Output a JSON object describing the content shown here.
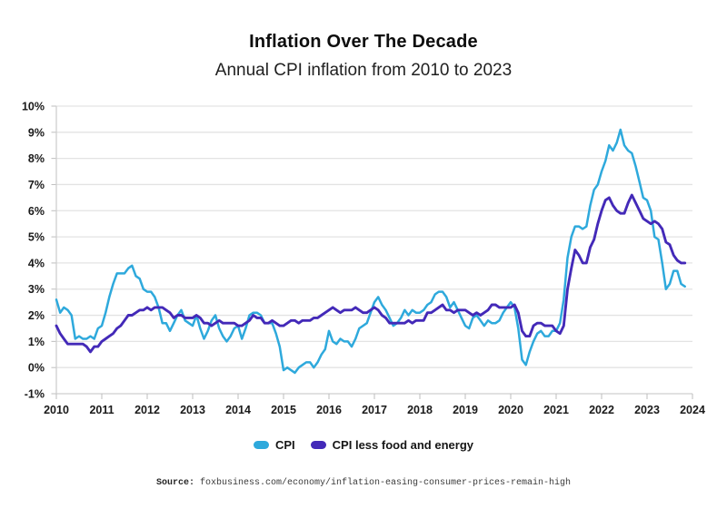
{
  "header": {
    "title": "Inflation Over The Decade",
    "subtitle": "Annual CPI inflation from 2010 to 2023"
  },
  "legend": [
    {
      "label": "CPI",
      "color": "#2ea9dc"
    },
    {
      "label": "CPI less food and energy",
      "color": "#4329b8"
    }
  ],
  "source": {
    "prefix": "Source:",
    "text": "foxbusiness.com/economy/inflation-easing-consumer-prices-remain-high"
  },
  "chart_data": {
    "type": "line",
    "title": "Inflation Over The Decade",
    "subtitle": "Annual CPI inflation from 2010 to 2023",
    "xlabel": "",
    "ylabel": "",
    "xlim": [
      2010,
      2024
    ],
    "ylim": [
      -1,
      10
    ],
    "grid": "horizontal",
    "legend_position": "bottom",
    "x_start_year": 2010,
    "frequency": "monthly",
    "x_tick_labels": [
      "2010",
      "2011",
      "2012",
      "2013",
      "2014",
      "2015",
      "2016",
      "2017",
      "2018",
      "2019",
      "2020",
      "2021",
      "2022",
      "2023",
      "2024"
    ],
    "y_tick_values": [
      10,
      9,
      8,
      7,
      6,
      5,
      4,
      3,
      2,
      1,
      0,
      -1
    ],
    "y_tick_labels": [
      "10%",
      "9%",
      "8%",
      "7%",
      "6%",
      "5%",
      "4%",
      "3%",
      "2%",
      "1%",
      "0%",
      "-1%"
    ],
    "series": [
      {
        "name": "CPI",
        "color": "#2ea9dc",
        "values": [
          2.6,
          2.1,
          2.3,
          2.2,
          2.0,
          1.1,
          1.2,
          1.1,
          1.1,
          1.2,
          1.1,
          1.5,
          1.6,
          2.1,
          2.7,
          3.2,
          3.6,
          3.6,
          3.6,
          3.8,
          3.9,
          3.5,
          3.4,
          3.0,
          2.9,
          2.9,
          2.7,
          2.3,
          1.7,
          1.7,
          1.4,
          1.7,
          2.0,
          2.2,
          1.8,
          1.7,
          1.6,
          2.0,
          1.5,
          1.1,
          1.4,
          1.8,
          2.0,
          1.5,
          1.2,
          1.0,
          1.2,
          1.5,
          1.6,
          1.1,
          1.5,
          2.0,
          2.1,
          2.1,
          2.0,
          1.7,
          1.7,
          1.7,
          1.3,
          0.8,
          -0.1,
          0.0,
          -0.1,
          -0.2,
          0.0,
          0.1,
          0.2,
          0.2,
          0.0,
          0.2,
          0.5,
          0.7,
          1.4,
          1.0,
          0.9,
          1.1,
          1.0,
          1.0,
          0.8,
          1.1,
          1.5,
          1.6,
          1.7,
          2.1,
          2.5,
          2.7,
          2.4,
          2.2,
          1.9,
          1.6,
          1.7,
          1.9,
          2.2,
          2.0,
          2.2,
          2.1,
          2.1,
          2.2,
          2.4,
          2.5,
          2.8,
          2.9,
          2.9,
          2.7,
          2.3,
          2.5,
          2.2,
          1.9,
          1.6,
          1.5,
          1.9,
          2.0,
          1.8,
          1.6,
          1.8,
          1.7,
          1.7,
          1.8,
          2.1,
          2.3,
          2.5,
          2.3,
          1.5,
          0.3,
          0.1,
          0.6,
          1.0,
          1.3,
          1.4,
          1.2,
          1.2,
          1.4,
          1.4,
          1.7,
          2.6,
          4.2,
          5.0,
          5.4,
          5.4,
          5.3,
          5.4,
          6.2,
          6.8,
          7.0,
          7.5,
          7.9,
          8.5,
          8.3,
          8.6,
          9.1,
          8.5,
          8.3,
          8.2,
          7.7,
          7.1,
          6.5,
          6.4,
          6.0,
          5.0,
          4.9,
          4.0,
          3.0,
          3.2,
          3.7,
          3.7,
          3.2,
          3.1
        ]
      },
      {
        "name": "CPI less food and energy",
        "color": "#4329b8",
        "values": [
          1.6,
          1.3,
          1.1,
          0.9,
          0.9,
          0.9,
          0.9,
          0.9,
          0.8,
          0.6,
          0.8,
          0.8,
          1.0,
          1.1,
          1.2,
          1.3,
          1.5,
          1.6,
          1.8,
          2.0,
          2.0,
          2.1,
          2.2,
          2.2,
          2.3,
          2.2,
          2.3,
          2.3,
          2.3,
          2.2,
          2.1,
          1.9,
          2.0,
          2.0,
          1.9,
          1.9,
          1.9,
          2.0,
          1.9,
          1.7,
          1.7,
          1.6,
          1.7,
          1.8,
          1.7,
          1.7,
          1.7,
          1.7,
          1.6,
          1.6,
          1.7,
          1.8,
          2.0,
          1.9,
          1.9,
          1.7,
          1.7,
          1.8,
          1.7,
          1.6,
          1.6,
          1.7,
          1.8,
          1.8,
          1.7,
          1.8,
          1.8,
          1.8,
          1.9,
          1.9,
          2.0,
          2.1,
          2.2,
          2.3,
          2.2,
          2.1,
          2.2,
          2.2,
          2.2,
          2.3,
          2.2,
          2.1,
          2.1,
          2.2,
          2.3,
          2.2,
          2.0,
          1.9,
          1.7,
          1.7,
          1.7,
          1.7,
          1.7,
          1.8,
          1.7,
          1.8,
          1.8,
          1.8,
          2.1,
          2.1,
          2.2,
          2.3,
          2.4,
          2.2,
          2.2,
          2.1,
          2.2,
          2.2,
          2.2,
          2.1,
          2.0,
          2.1,
          2.0,
          2.1,
          2.2,
          2.4,
          2.4,
          2.3,
          2.3,
          2.3,
          2.3,
          2.4,
          2.1,
          1.4,
          1.2,
          1.2,
          1.6,
          1.7,
          1.7,
          1.6,
          1.6,
          1.6,
          1.4,
          1.3,
          1.6,
          3.0,
          3.8,
          4.5,
          4.3,
          4.0,
          4.0,
          4.6,
          4.9,
          5.5,
          6.0,
          6.4,
          6.5,
          6.2,
          6.0,
          5.9,
          5.9,
          6.3,
          6.6,
          6.3,
          6.0,
          5.7,
          5.6,
          5.5,
          5.6,
          5.5,
          5.3,
          4.8,
          4.7,
          4.3,
          4.1,
          4.0,
          4.0
        ]
      }
    ]
  }
}
